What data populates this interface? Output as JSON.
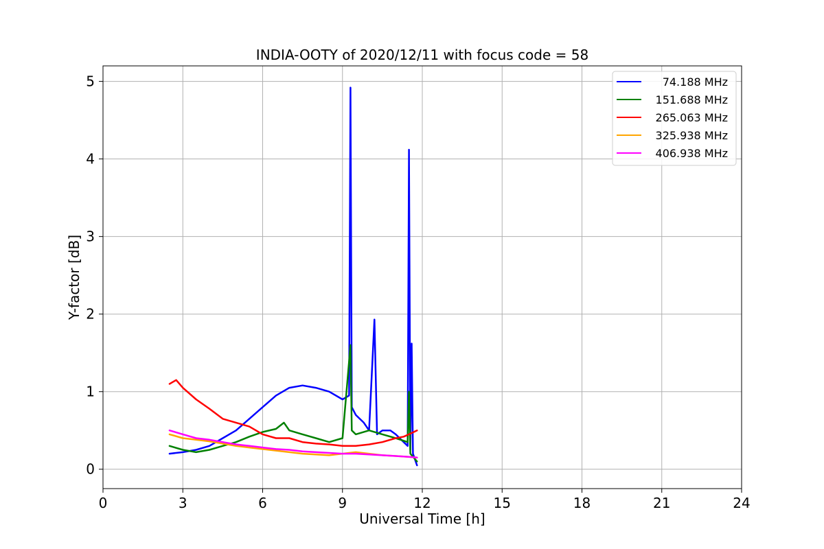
{
  "chart_data": {
    "type": "line",
    "title": "INDIA-OOTY of 2020/12/11 with focus code = 58",
    "xlabel": "Universal Time [h]",
    "ylabel": "Y-factor [dB]",
    "xlim": [
      0,
      24
    ],
    "ylim": [
      -0.25,
      5.2
    ],
    "xticks": [
      0,
      3,
      6,
      9,
      12,
      15,
      18,
      21,
      24
    ],
    "yticks": [
      0,
      1,
      2,
      3,
      4,
      5
    ],
    "grid": true,
    "legend_position": "top-right",
    "series": [
      {
        "name": "74.188 MHz",
        "color": "#0000ff",
        "x": [
          2.5,
          3.0,
          3.5,
          4.0,
          4.5,
          5.0,
          5.5,
          6.0,
          6.5,
          7.0,
          7.5,
          8.0,
          8.5,
          9.0,
          9.25,
          9.3,
          9.35,
          9.5,
          9.8,
          10.0,
          10.2,
          10.3,
          10.5,
          10.8,
          11.0,
          11.3,
          11.45,
          11.5,
          11.55,
          11.6,
          11.65,
          11.7,
          11.8
        ],
        "y": [
          0.2,
          0.22,
          0.25,
          0.3,
          0.4,
          0.5,
          0.65,
          0.8,
          0.95,
          1.05,
          1.08,
          1.05,
          1.0,
          0.9,
          0.95,
          4.92,
          0.8,
          0.7,
          0.6,
          0.5,
          1.93,
          0.45,
          0.5,
          0.5,
          0.45,
          0.35,
          0.3,
          4.12,
          0.25,
          1.62,
          0.2,
          0.15,
          0.05
        ]
      },
      {
        "name": "151.688 MHz",
        "color": "#008000",
        "x": [
          2.5,
          3.0,
          3.5,
          4.0,
          4.5,
          5.0,
          5.5,
          6.0,
          6.5,
          6.8,
          7.0,
          7.5,
          8.0,
          8.5,
          9.0,
          9.3,
          9.35,
          9.5,
          10.0,
          10.5,
          11.0,
          11.45,
          11.5,
          11.55,
          11.8
        ],
        "y": [
          0.3,
          0.25,
          0.22,
          0.25,
          0.3,
          0.35,
          0.42,
          0.48,
          0.52,
          0.6,
          0.5,
          0.45,
          0.4,
          0.35,
          0.4,
          1.6,
          0.5,
          0.45,
          0.5,
          0.45,
          0.4,
          0.35,
          1.0,
          0.2,
          0.1
        ]
      },
      {
        "name": "265.063 MHz",
        "color": "#ff0000",
        "x": [
          2.5,
          2.75,
          3.0,
          3.5,
          4.0,
          4.5,
          5.0,
          5.5,
          6.0,
          6.5,
          7.0,
          7.5,
          8.0,
          8.5,
          9.0,
          9.5,
          10.0,
          10.5,
          11.0,
          11.3,
          11.5,
          11.8
        ],
        "y": [
          1.1,
          1.15,
          1.05,
          0.9,
          0.78,
          0.65,
          0.6,
          0.55,
          0.45,
          0.4,
          0.4,
          0.35,
          0.33,
          0.32,
          0.3,
          0.3,
          0.32,
          0.35,
          0.4,
          0.42,
          0.45,
          0.5
        ]
      },
      {
        "name": "325.938 MHz",
        "color": "#ffa500",
        "x": [
          2.5,
          3.0,
          3.5,
          4.0,
          4.5,
          5.0,
          5.5,
          6.0,
          6.5,
          7.0,
          7.5,
          8.0,
          8.5,
          9.0,
          9.5,
          10.0,
          10.5,
          11.0,
          11.5,
          11.8
        ],
        "y": [
          0.45,
          0.4,
          0.38,
          0.36,
          0.33,
          0.3,
          0.28,
          0.26,
          0.24,
          0.22,
          0.2,
          0.19,
          0.18,
          0.2,
          0.22,
          0.2,
          0.18,
          0.17,
          0.16,
          0.15
        ]
      },
      {
        "name": "406.938 MHz",
        "color": "#ff00ff",
        "x": [
          2.5,
          3.0,
          3.5,
          4.0,
          4.5,
          5.0,
          5.5,
          6.0,
          6.5,
          7.0,
          7.5,
          8.0,
          8.5,
          9.0,
          9.5,
          10.0,
          10.5,
          11.0,
          11.5,
          11.8
        ],
        "y": [
          0.5,
          0.45,
          0.4,
          0.38,
          0.35,
          0.32,
          0.3,
          0.28,
          0.26,
          0.25,
          0.23,
          0.22,
          0.21,
          0.2,
          0.2,
          0.19,
          0.18,
          0.17,
          0.16,
          0.15
        ]
      }
    ]
  }
}
